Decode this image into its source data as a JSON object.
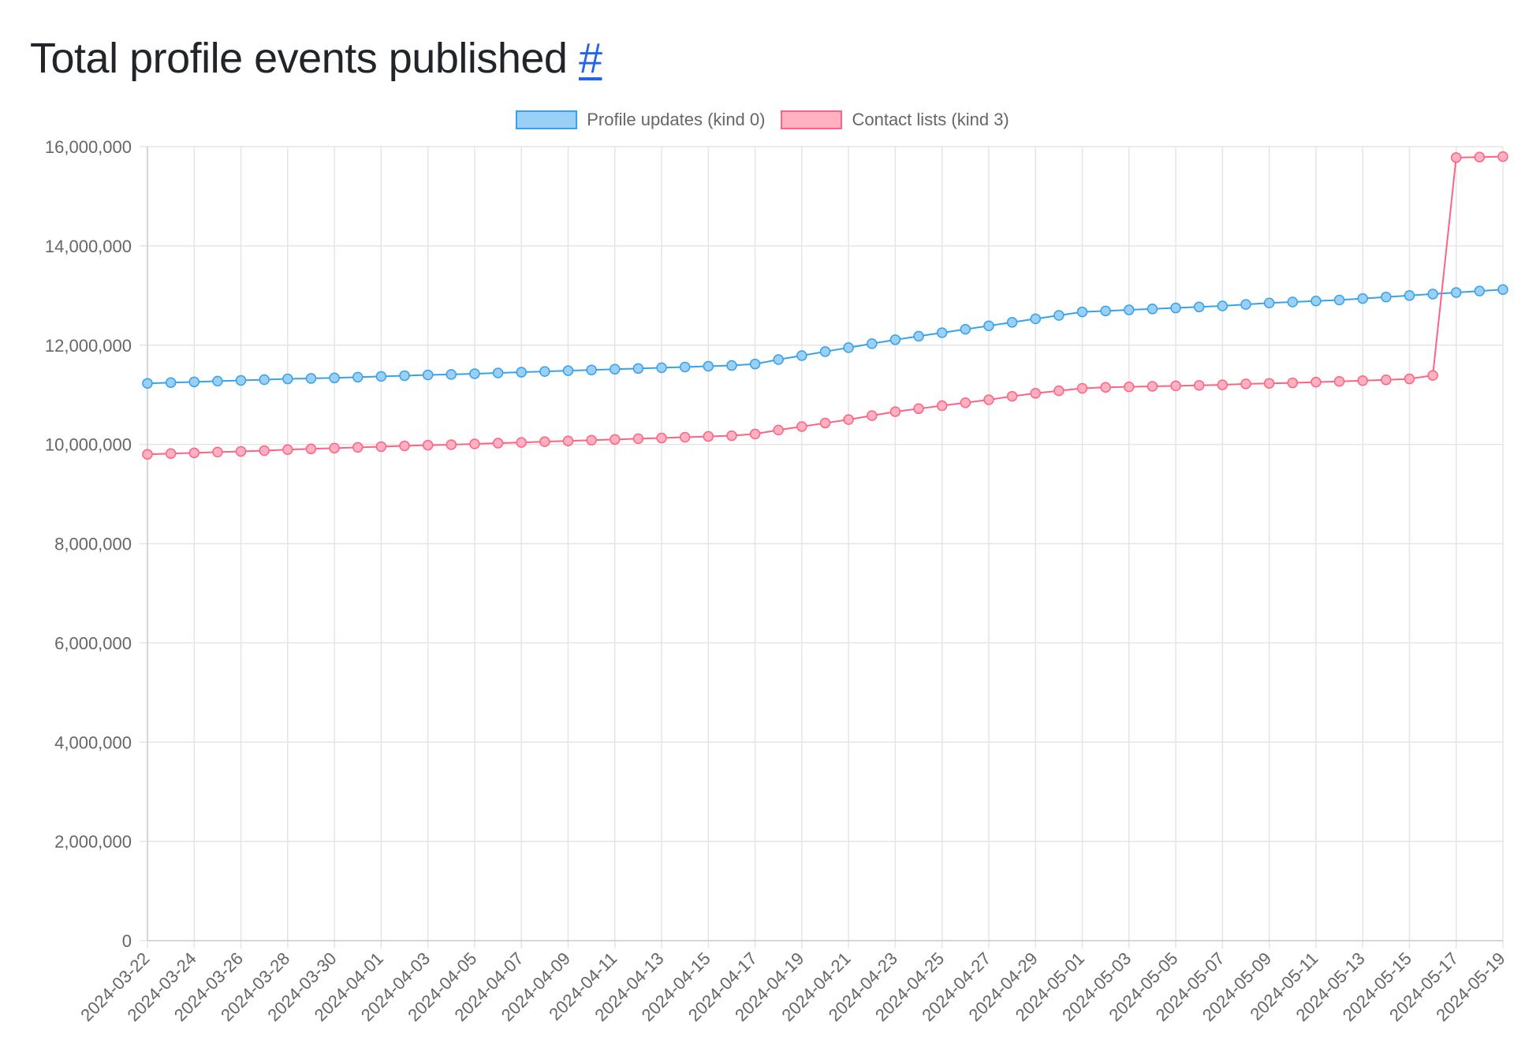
{
  "page": {
    "title": "Total profile events published",
    "anchor": "#"
  },
  "chart_data": {
    "type": "line",
    "title": "",
    "xlabel": "",
    "ylabel": "",
    "ylim": [
      0,
      16000000
    ],
    "yticks": [
      0,
      2000000,
      4000000,
      6000000,
      8000000,
      10000000,
      12000000,
      14000000,
      16000000
    ],
    "grid": true,
    "legend_position": "top",
    "x": [
      "2024-03-22",
      "2024-03-23",
      "2024-03-24",
      "2024-03-25",
      "2024-03-26",
      "2024-03-27",
      "2024-03-28",
      "2024-03-29",
      "2024-03-30",
      "2024-03-31",
      "2024-04-01",
      "2024-04-02",
      "2024-04-03",
      "2024-04-04",
      "2024-04-05",
      "2024-04-06",
      "2024-04-07",
      "2024-04-08",
      "2024-04-09",
      "2024-04-10",
      "2024-04-11",
      "2024-04-12",
      "2024-04-13",
      "2024-04-14",
      "2024-04-15",
      "2024-04-16",
      "2024-04-17",
      "2024-04-18",
      "2024-04-19",
      "2024-04-20",
      "2024-04-21",
      "2024-04-22",
      "2024-04-23",
      "2024-04-24",
      "2024-04-25",
      "2024-04-26",
      "2024-04-27",
      "2024-04-28",
      "2024-04-29",
      "2024-04-30",
      "2024-05-01",
      "2024-05-02",
      "2024-05-03",
      "2024-05-04",
      "2024-05-05",
      "2024-05-06",
      "2024-05-07",
      "2024-05-08",
      "2024-05-09",
      "2024-05-10",
      "2024-05-11",
      "2024-05-12",
      "2024-05-13",
      "2024-05-14",
      "2024-05-15",
      "2024-05-16",
      "2024-05-17",
      "2024-05-18",
      "2024-05-19"
    ],
    "x_tick_labels": [
      "2024-03-22",
      "2024-03-24",
      "2024-03-26",
      "2024-03-28",
      "2024-03-30",
      "2024-04-01",
      "2024-04-03",
      "2024-04-05",
      "2024-04-07",
      "2024-04-09",
      "2024-04-11",
      "2024-04-13",
      "2024-04-15",
      "2024-04-17",
      "2024-04-19",
      "2024-04-21",
      "2024-04-23",
      "2024-04-25",
      "2024-04-27",
      "2024-04-29",
      "2024-05-01",
      "2024-05-03",
      "2024-05-05",
      "2024-05-07",
      "2024-05-09",
      "2024-05-11",
      "2024-05-13",
      "2024-05-15",
      "2024-05-17",
      "2024-05-19"
    ],
    "series": [
      {
        "name": "Profile updates (kind 0)",
        "color": "#36a2eb",
        "fill": "#9ad0f5",
        "values": [
          11230000,
          11245000,
          11260000,
          11275000,
          11290000,
          11305000,
          11320000,
          11330000,
          11340000,
          11355000,
          11370000,
          11385000,
          11400000,
          11410000,
          11425000,
          11440000,
          11455000,
          11470000,
          11485000,
          11500000,
          11515000,
          11530000,
          11545000,
          11560000,
          11575000,
          11590000,
          11620000,
          11710000,
          11790000,
          11870000,
          11950000,
          12030000,
          12110000,
          12180000,
          12250000,
          12320000,
          12390000,
          12460000,
          12530000,
          12600000,
          12670000,
          12690000,
          12710000,
          12730000,
          12750000,
          12770000,
          12790000,
          12820000,
          12850000,
          12870000,
          12890000,
          12910000,
          12940000,
          12970000,
          13000000,
          13030000,
          13060000,
          13090000,
          13120000
        ]
      },
      {
        "name": "Contact lists (kind 3)",
        "color": "#ff6384",
        "fill": "#ffb1c1",
        "values": [
          9800000,
          9815000,
          9830000,
          9845000,
          9860000,
          9875000,
          9895000,
          9910000,
          9925000,
          9940000,
          9955000,
          9970000,
          9985000,
          9995000,
          10010000,
          10025000,
          10040000,
          10055000,
          10070000,
          10085000,
          10100000,
          10115000,
          10130000,
          10145000,
          10160000,
          10175000,
          10210000,
          10290000,
          10360000,
          10430000,
          10500000,
          10580000,
          10660000,
          10720000,
          10780000,
          10840000,
          10900000,
          10970000,
          11030000,
          11080000,
          11130000,
          11150000,
          11160000,
          11170000,
          11180000,
          11190000,
          11200000,
          11220000,
          11230000,
          11240000,
          11255000,
          11270000,
          11285000,
          11300000,
          11320000,
          11390000,
          15780000,
          15790000,
          15800000
        ]
      }
    ]
  }
}
